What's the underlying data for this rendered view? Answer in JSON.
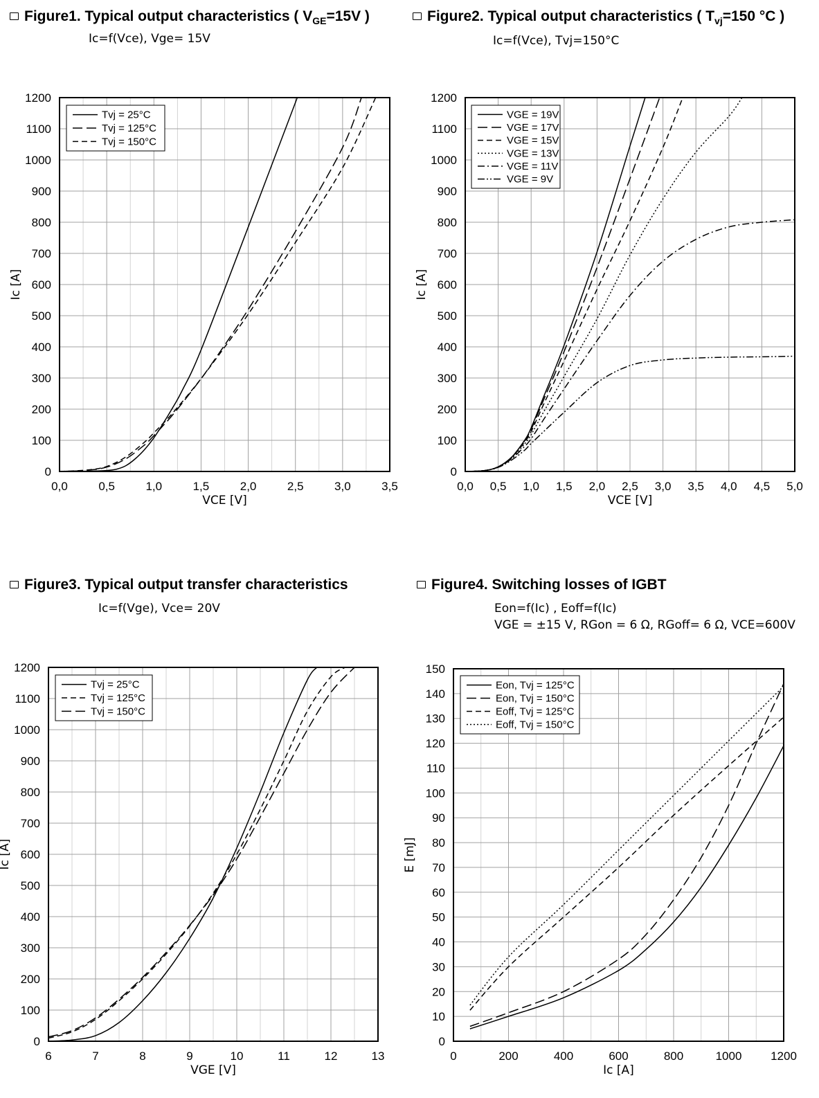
{
  "figures": [
    {
      "title_prefix": "Figure1. Typical output characteristics ( V",
      "title_sub": "GE",
      "title_suffix": "=15V )",
      "subtitle": "Ic=f(Vce), Vge= 15V"
    },
    {
      "title_prefix": "Figure2. Typical output characteristics ( T",
      "title_sub": "vj",
      "title_suffix": "=150 °C )",
      "subtitle": "Ic=f(Vce), Tvj=150°C"
    },
    {
      "title_prefix": "Figure3. Typical output transfer characteristics",
      "title_sub": "",
      "title_suffix": "",
      "subtitle": "Ic=f(Vge), Vce= 20V"
    },
    {
      "title_prefix": "Figure4. Switching losses of IGBT",
      "title_sub": "",
      "title_suffix": "",
      "subtitle": "Eon=f(Ic) , Eoff=f(Ic)",
      "subtitle2": "VGE = ±15 V, RGon = 6 Ω, RGoff= 6 Ω, VCE=600V"
    }
  ],
  "chart_data": [
    {
      "type": "line",
      "xlabel": "VCE [V]",
      "ylabel": "Ic [A]",
      "xlim": [
        0,
        3.5
      ],
      "ylim": [
        0,
        1200
      ],
      "xticks": [
        "0,0",
        "0,5",
        "1,0",
        "1,5",
        "2,0",
        "2,5",
        "3,0",
        "3,5"
      ],
      "yticks": [
        "0",
        "100",
        "200",
        "300",
        "400",
        "500",
        "600",
        "700",
        "800",
        "900",
        "1000",
        "1100",
        "1200"
      ],
      "grid": true,
      "legend": "top-left",
      "series": [
        {
          "name": "Tvj = 25°C",
          "style": "solid",
          "x": [
            0,
            0.3,
            0.5,
            0.6,
            0.7,
            0.8,
            0.9,
            1.0,
            1.1,
            1.2,
            1.3,
            1.5,
            2.0,
            2.52
          ],
          "y": [
            0,
            1,
            3,
            7,
            18,
            40,
            70,
            108,
            155,
            205,
            260,
            390,
            785,
            1200
          ]
        },
        {
          "name": "Tvj = 125°C",
          "style": "longdash",
          "x": [
            0,
            0.3,
            0.5,
            0.7,
            0.9,
            1.0,
            1.1,
            1.2,
            1.4,
            1.6,
            2.0,
            2.5,
            3.0,
            3.2
          ],
          "y": [
            0,
            4,
            14,
            40,
            85,
            115,
            148,
            182,
            258,
            340,
            520,
            770,
            1040,
            1200
          ]
        },
        {
          "name": "Tvj = 150°C",
          "style": "dash",
          "x": [
            0,
            0.3,
            0.5,
            0.7,
            0.9,
            1.0,
            1.1,
            1.2,
            1.4,
            1.6,
            2.0,
            2.5,
            3.0,
            3.35
          ],
          "y": [
            0,
            5,
            16,
            46,
            94,
            124,
            155,
            188,
            260,
            338,
            505,
            735,
            975,
            1200
          ]
        }
      ]
    },
    {
      "type": "line",
      "xlabel": "VCE [V]",
      "ylabel": "Ic [A]",
      "xlim": [
        0,
        5
      ],
      "ylim": [
        0,
        1200
      ],
      "xticks": [
        "0,0",
        "0,5",
        "1,0",
        "1,5",
        "2,0",
        "2,5",
        "3,0",
        "3,5",
        "4,0",
        "4,5",
        "5,0"
      ],
      "yticks": [
        "0",
        "100",
        "200",
        "300",
        "400",
        "500",
        "600",
        "700",
        "800",
        "900",
        "1000",
        "1100",
        "1200"
      ],
      "grid": true,
      "legend": "top-left",
      "series": [
        {
          "name": "VGE = 19V",
          "style": "solid",
          "x": [
            0,
            0.3,
            0.5,
            0.7,
            0.9,
            1.0,
            1.2,
            1.5,
            2.0,
            2.5,
            2.73
          ],
          "y": [
            0,
            3,
            15,
            45,
            100,
            140,
            245,
            405,
            705,
            1045,
            1200
          ]
        },
        {
          "name": "VGE = 17V",
          "style": "longdash",
          "x": [
            0,
            0.3,
            0.5,
            0.7,
            0.9,
            1.0,
            1.2,
            1.5,
            2.0,
            2.5,
            2.95
          ],
          "y": [
            0,
            3,
            15,
            45,
            98,
            135,
            235,
            385,
            655,
            940,
            1200
          ]
        },
        {
          "name": "VGE = 15V",
          "style": "dash",
          "x": [
            0,
            0.3,
            0.5,
            0.7,
            0.9,
            1.0,
            1.2,
            1.5,
            2.0,
            2.5,
            3.0,
            3.3
          ],
          "y": [
            0,
            3,
            15,
            44,
            94,
            128,
            220,
            355,
            585,
            805,
            1040,
            1200
          ]
        },
        {
          "name": "VGE = 13V",
          "style": "dot",
          "x": [
            0,
            0.3,
            0.5,
            0.7,
            0.9,
            1.0,
            1.2,
            1.5,
            2.0,
            2.5,
            3.0,
            3.5,
            4.0,
            4.2
          ],
          "y": [
            0,
            3,
            15,
            42,
            88,
            118,
            195,
            305,
            490,
            695,
            875,
            1025,
            1140,
            1200
          ]
        },
        {
          "name": "VGE = 11V",
          "style": "dashdot",
          "x": [
            0,
            0.3,
            0.5,
            0.7,
            0.9,
            1.0,
            1.2,
            1.5,
            2.0,
            2.5,
            3.0,
            3.5,
            4.0,
            4.5,
            5.0
          ],
          "y": [
            0,
            3,
            14,
            40,
            80,
            105,
            170,
            265,
            420,
            565,
            675,
            745,
            785,
            800,
            808
          ]
        },
        {
          "name": "VGE = 9V",
          "style": "dashdotdot",
          "x": [
            0,
            0.3,
            0.5,
            0.7,
            0.9,
            1.0,
            1.2,
            1.5,
            2.0,
            2.5,
            3.0,
            3.5,
            4.0,
            4.5,
            5.0
          ],
          "y": [
            0,
            3,
            13,
            36,
            68,
            90,
            130,
            190,
            285,
            340,
            358,
            364,
            367,
            368,
            370
          ]
        }
      ]
    },
    {
      "type": "line",
      "xlabel": "VGE [V]",
      "ylabel": "Ic [A]",
      "xlim": [
        6,
        13
      ],
      "ylim": [
        0,
        1200
      ],
      "xticks": [
        "6",
        "7",
        "8",
        "9",
        "10",
        "11",
        "12",
        "13"
      ],
      "yticks": [
        "0",
        "100",
        "200",
        "300",
        "400",
        "500",
        "600",
        "700",
        "800",
        "900",
        "1000",
        "1100",
        "1200"
      ],
      "grid": true,
      "legend": "top-left",
      "series": [
        {
          "name": "Tvj = 25°C",
          "style": "solid",
          "x": [
            6,
            6.5,
            7,
            7.5,
            8,
            8.5,
            9,
            9.5,
            10,
            10.5,
            11,
            11.5,
            11.7
          ],
          "y": [
            0,
            4,
            18,
            60,
            130,
            220,
            330,
            460,
            620,
            800,
            990,
            1160,
            1200
          ]
        },
        {
          "name": "Tvj = 125°C",
          "style": "dash",
          "x": [
            6,
            6.5,
            7,
            7.5,
            8,
            8.5,
            9,
            9.5,
            10,
            10.5,
            11,
            11.5,
            12,
            12.3
          ],
          "y": [
            10,
            30,
            70,
            130,
            200,
            280,
            370,
            475,
            600,
            745,
            900,
            1060,
            1170,
            1200
          ]
        },
        {
          "name": "Tvj = 150°C",
          "style": "longdash",
          "x": [
            6,
            6.5,
            7,
            7.5,
            8,
            8.5,
            9,
            9.5,
            10,
            10.5,
            11,
            11.5,
            12,
            12.5
          ],
          "y": [
            14,
            34,
            75,
            135,
            205,
            285,
            372,
            470,
            585,
            720,
            860,
            1000,
            1120,
            1200
          ]
        }
      ]
    },
    {
      "type": "line",
      "xlabel": "Ic [A]",
      "ylabel": "E [mJ]",
      "xlim": [
        0,
        1200
      ],
      "ylim": [
        0,
        150
      ],
      "xticks": [
        "0",
        "200",
        "400",
        "600",
        "800",
        "1000",
        "1200"
      ],
      "yticks": [
        "0",
        "10",
        "20",
        "30",
        "40",
        "50",
        "60",
        "70",
        "80",
        "90",
        "100",
        "110",
        "120",
        "130",
        "140",
        "150"
      ],
      "grid": true,
      "legend": "top-left",
      "series": [
        {
          "name": "Eon, Tvj = 125°C",
          "style": "solid",
          "x": [
            60,
            200,
            400,
            600,
            700,
            800,
            900,
            1000,
            1100,
            1200
          ],
          "y": [
            5,
            10,
            17.5,
            28.5,
            37,
            48,
            62,
            79,
            98,
            119
          ]
        },
        {
          "name": "Eon, Tvj = 150°C",
          "style": "longdash",
          "x": [
            60,
            200,
            400,
            600,
            700,
            800,
            900,
            1000,
            1100,
            1150,
            1200
          ],
          "y": [
            6,
            11.5,
            20,
            33,
            43,
            57,
            74,
            95,
            120,
            132,
            144
          ]
        },
        {
          "name": "Eoff, Tvj = 125°C",
          "style": "dash",
          "x": [
            60,
            200,
            400,
            600,
            800,
            1000,
            1200
          ],
          "y": [
            12.5,
            30,
            50,
            70,
            91,
            111,
            130.5
          ]
        },
        {
          "name": "Eoff, Tvj = 150°C",
          "style": "dot",
          "x": [
            60,
            200,
            400,
            600,
            800,
            1000,
            1200
          ],
          "y": [
            14.5,
            34,
            55,
            77,
            99,
            121,
            143
          ]
        }
      ]
    }
  ]
}
